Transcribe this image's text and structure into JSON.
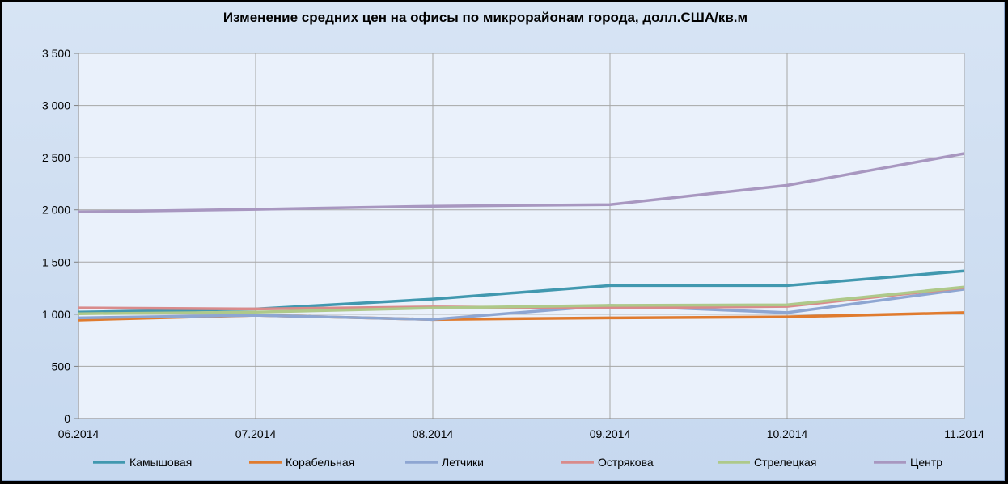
{
  "chart_data": {
    "type": "line",
    "title": "Изменение средних цен на офисы по микрорайонам города, долл.США/кв.м",
    "xlabel": "",
    "ylabel": "",
    "categories": [
      "06.2014",
      "07.2014",
      "08.2014",
      "09.2014",
      "10.2014",
      "11.2014"
    ],
    "ylim": [
      0,
      3500
    ],
    "yticks": [
      0,
      500,
      1000,
      1500,
      2000,
      2500,
      3000,
      3500
    ],
    "ytick_labels": [
      "0",
      "500",
      "1 000",
      "1 500",
      "2 000",
      "2 500",
      "3 000",
      "3 500"
    ],
    "grid": true,
    "legend": "bottom",
    "series": [
      {
        "name": "Камышовая",
        "color": "#4198af",
        "values": [
          1020,
          1050,
          1145,
          1275,
          1275,
          1415
        ]
      },
      {
        "name": "Корабельная",
        "color": "#e07b2e",
        "values": [
          945,
          990,
          950,
          965,
          975,
          1015
        ]
      },
      {
        "name": "Летчики",
        "color": "#8ea6d2",
        "values": [
          965,
          990,
          950,
          1085,
          1015,
          1240
        ]
      },
      {
        "name": "Острякова",
        "color": "#d98b8b",
        "values": [
          1060,
          1050,
          1070,
          1060,
          1075,
          1255
        ]
      },
      {
        "name": "Стрелецкая",
        "color": "#aec98a",
        "values": [
          1005,
          1020,
          1060,
          1085,
          1090,
          1260
        ]
      },
      {
        "name": "Центр",
        "color": "#a897c0",
        "values": [
          1980,
          2005,
          2035,
          2050,
          2235,
          2540
        ]
      }
    ]
  }
}
